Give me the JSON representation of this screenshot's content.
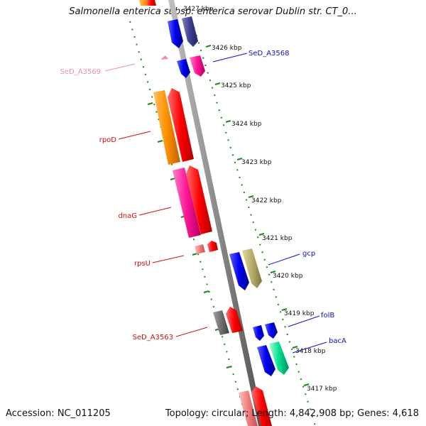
{
  "header": {
    "title": "Salmonella enterica subsp. enterica serovar Dublin str. CT_0..."
  },
  "footer": {
    "accession": "Accession: NC_011205",
    "summary": "Topology: circular; Length: 4,842,908 bp; Genes: 4,618"
  },
  "scale_labels": [
    "3427 kbp",
    "3426 kbp",
    "3425 kbp",
    "3424 kbp",
    "3423 kbp",
    "3422 kbp",
    "3421 kbp",
    "3420 kbp",
    "3419 kbp",
    "3418 kbp",
    "3417 kbp"
  ],
  "gene_labels": [
    {
      "text": "SeD_A3568",
      "strand": "forward",
      "color": "#1010c8"
    },
    {
      "text": "SeD_A3569",
      "strand": "reverse",
      "color": "#f08cb4"
    },
    {
      "text": "rpoD",
      "strand": "reverse",
      "color": "#d01010"
    },
    {
      "text": "dnaG",
      "strand": "reverse",
      "color": "#d01010"
    },
    {
      "text": "rpsU",
      "strand": "reverse",
      "color": "#d01010"
    },
    {
      "text": "gcp",
      "strand": "forward",
      "color": "#1010c8"
    },
    {
      "text": "folB",
      "strand": "forward",
      "color": "#1010c8"
    },
    {
      "text": "bacA",
      "strand": "forward",
      "color": "#1010c8"
    },
    {
      "text": "SeD_A3563",
      "strand": "reverse",
      "color": "#d01010"
    }
  ],
  "colors": {
    "backbone": "#8c8c8c",
    "tick": "#1a8a1a",
    "forward_label": "#1010c8",
    "reverse_label": "#d01010",
    "reverse_cds": "#ff0000",
    "forward_cds": "#0000ee"
  }
}
